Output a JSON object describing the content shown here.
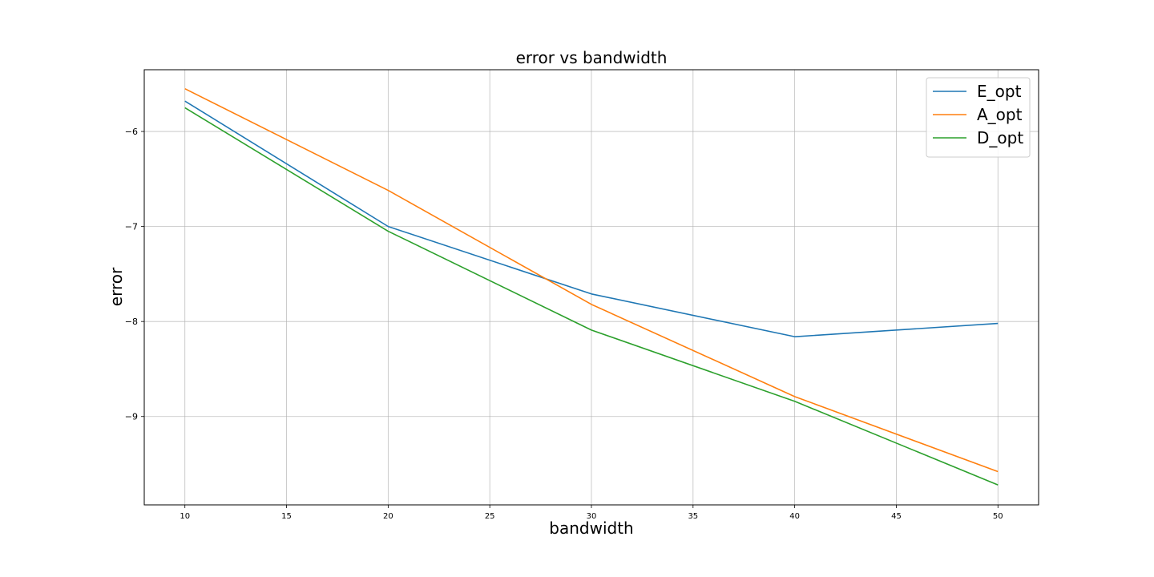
{
  "chart_data": {
    "type": "line",
    "title": "error vs bandwidth",
    "xlabel": "bandwidth",
    "ylabel": "error",
    "x": [
      10,
      20,
      30,
      40,
      50
    ],
    "xticks": [
      10,
      15,
      20,
      25,
      30,
      35,
      40,
      45,
      50
    ],
    "xtick_labels": [
      "10",
      "15",
      "20",
      "25",
      "30",
      "35",
      "40",
      "45",
      "50"
    ],
    "yticks": [
      -6,
      -7,
      -8,
      -9
    ],
    "ytick_labels": [
      "−6",
      "−7",
      "−8",
      "−9"
    ],
    "xlim": [
      8,
      52
    ],
    "ylim": [
      -9.93,
      -5.35
    ],
    "grid": true,
    "legend_position": "top-right",
    "series": [
      {
        "name": "E_opt",
        "color": "#1f77b4",
        "values": [
          -5.68,
          -7.0,
          -7.71,
          -8.16,
          -8.02
        ]
      },
      {
        "name": "A_opt",
        "color": "#ff7f0e",
        "values": [
          -5.55,
          -6.62,
          -7.82,
          -8.79,
          -9.58
        ]
      },
      {
        "name": "D_opt",
        "color": "#2ca02c",
        "values": [
          -5.75,
          -7.05,
          -8.09,
          -8.84,
          -9.72
        ]
      }
    ]
  }
}
